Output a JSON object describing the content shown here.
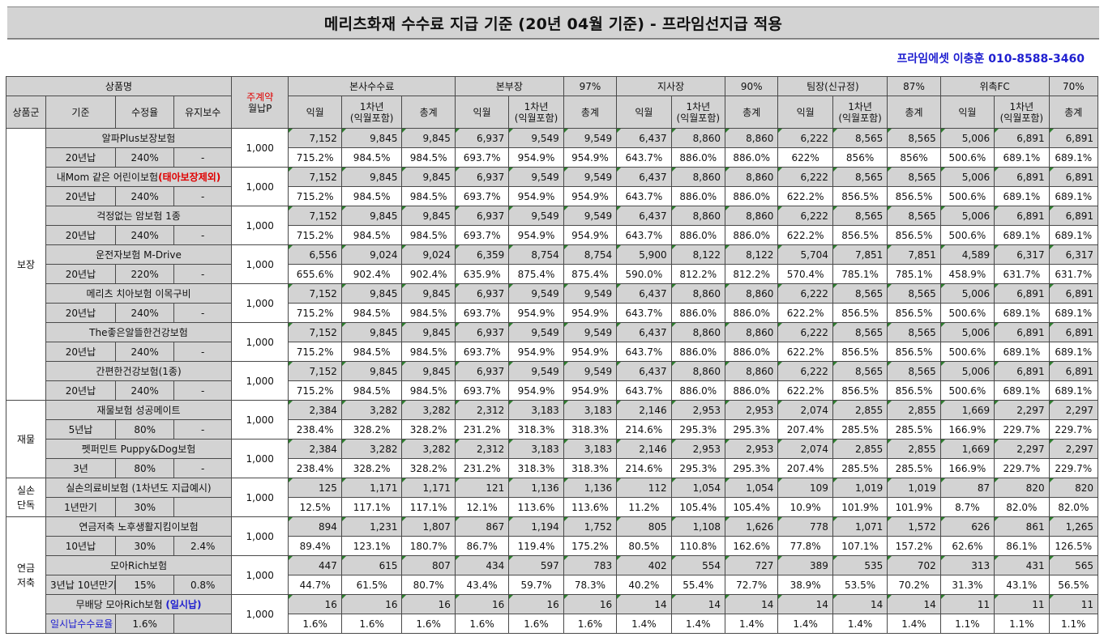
{
  "title": "메리츠화재 수수료 지급 기준 (20년 04월 기준) - 프라임선지급 적용",
  "contact": "프라임에셋 이충훈 010-8588-3460",
  "header": {
    "product_name": "상품명",
    "weekly_label": "주계약",
    "monthly_label": "월납P",
    "group": "상품군",
    "basis": "기준",
    "adj_rate": "수정율",
    "maintenance": "유지보수",
    "hq_fee": "본사수수료",
    "div_head": "본부장",
    "branch_head": "지사장",
    "team_head": "팀장(신규정)",
    "fc": "위촉FC",
    "div_pct": "97%",
    "branch_pct": "90%",
    "team_pct": "87%",
    "fc_pct": "70%",
    "next_month": "익월",
    "first_year_l1": "1차년",
    "first_year_l2": "(익월포함)",
    "total": "총계"
  },
  "groups": [
    {
      "name": "보장",
      "products": [
        {
          "name": "알파Plus보장보험",
          "basis": "20년납",
          "rate": "240%",
          "maint": "-",
          "premium": "1,000",
          "vals": [
            "7,152",
            "9,845",
            "9,845",
            "6,937",
            "9,549",
            "9,549",
            "6,437",
            "8,860",
            "8,860",
            "6,222",
            "8,565",
            "8,565",
            "5,006",
            "6,891",
            "6,891"
          ],
          "pcts": [
            "715.2%",
            "984.5%",
            "984.5%",
            "693.7%",
            "954.9%",
            "954.9%",
            "643.7%",
            "886.0%",
            "886.0%",
            "622%",
            "856%",
            "856%",
            "500.6%",
            "689.1%",
            "689.1%"
          ]
        },
        {
          "name": "내Mom 같은 어린이보험",
          "name_suffix": "(태아보장제외)",
          "basis": "20년납",
          "rate": "240%",
          "maint": "-",
          "premium": "1,000",
          "vals": [
            "7,152",
            "9,845",
            "9,845",
            "6,937",
            "9,549",
            "9,549",
            "6,437",
            "8,860",
            "8,860",
            "6,222",
            "8,565",
            "8,565",
            "5,006",
            "6,891",
            "6,891"
          ],
          "pcts": [
            "715.2%",
            "984.5%",
            "984.5%",
            "693.7%",
            "954.9%",
            "954.9%",
            "643.7%",
            "886.0%",
            "886.0%",
            "622.2%",
            "856.5%",
            "856.5%",
            "500.6%",
            "689.1%",
            "689.1%"
          ]
        },
        {
          "name": "걱정없는 암보험 1종",
          "basis": "20년납",
          "rate": "240%",
          "maint": "-",
          "premium": "1,000",
          "vals": [
            "7,152",
            "9,845",
            "9,845",
            "6,937",
            "9,549",
            "9,549",
            "6,437",
            "8,860",
            "8,860",
            "6,222",
            "8,565",
            "8,565",
            "5,006",
            "6,891",
            "6,891"
          ],
          "pcts": [
            "715.2%",
            "984.5%",
            "984.5%",
            "693.7%",
            "954.9%",
            "954.9%",
            "643.7%",
            "886.0%",
            "886.0%",
            "622.2%",
            "856.5%",
            "856.5%",
            "500.6%",
            "689.1%",
            "689.1%"
          ]
        },
        {
          "name": "운전자보험 M-Drive",
          "basis": "20년납",
          "rate": "220%",
          "maint": "-",
          "premium": "1,000",
          "vals": [
            "6,556",
            "9,024",
            "9,024",
            "6,359",
            "8,754",
            "8,754",
            "5,900",
            "8,122",
            "8,122",
            "5,704",
            "7,851",
            "7,851",
            "4,589",
            "6,317",
            "6,317"
          ],
          "pcts": [
            "655.6%",
            "902.4%",
            "902.4%",
            "635.9%",
            "875.4%",
            "875.4%",
            "590.0%",
            "812.2%",
            "812.2%",
            "570.4%",
            "785.1%",
            "785.1%",
            "458.9%",
            "631.7%",
            "631.7%"
          ]
        },
        {
          "name": "메리츠 치아보험 이목구비",
          "basis": "20년납",
          "rate": "240%",
          "maint": "-",
          "premium": "1,000",
          "vals": [
            "7,152",
            "9,845",
            "9,845",
            "6,937",
            "9,549",
            "9,549",
            "6,437",
            "8,860",
            "8,860",
            "6,222",
            "8,565",
            "8,565",
            "5,006",
            "6,891",
            "6,891"
          ],
          "pcts": [
            "715.2%",
            "984.5%",
            "984.5%",
            "693.7%",
            "954.9%",
            "954.9%",
            "643.7%",
            "886.0%",
            "886.0%",
            "622.2%",
            "856.5%",
            "856.5%",
            "500.6%",
            "689.1%",
            "689.1%"
          ]
        },
        {
          "name": "The좋은알뜰한건강보험",
          "basis": "20년납",
          "rate": "240%",
          "maint": "-",
          "premium": "1,000",
          "vals": [
            "7,152",
            "9,845",
            "9,845",
            "6,937",
            "9,549",
            "9,549",
            "6,437",
            "8,860",
            "8,860",
            "6,222",
            "8,565",
            "8,565",
            "5,006",
            "6,891",
            "6,891"
          ],
          "pcts": [
            "715.2%",
            "984.5%",
            "984.5%",
            "693.7%",
            "954.9%",
            "954.9%",
            "643.7%",
            "886.0%",
            "886.0%",
            "622.2%",
            "856.5%",
            "856.5%",
            "500.6%",
            "689.1%",
            "689.1%"
          ]
        },
        {
          "name": "간편한건강보험(1종)",
          "basis": "20년납",
          "rate": "240%",
          "maint": "-",
          "premium": "1,000",
          "vals": [
            "7,152",
            "9,845",
            "9,845",
            "6,937",
            "9,549",
            "9,549",
            "6,437",
            "8,860",
            "8,860",
            "6,222",
            "8,565",
            "8,565",
            "5,006",
            "6,891",
            "6,891"
          ],
          "pcts": [
            "715.2%",
            "984.5%",
            "984.5%",
            "693.7%",
            "954.9%",
            "954.9%",
            "643.7%",
            "886.0%",
            "886.0%",
            "622.2%",
            "856.5%",
            "856.5%",
            "500.6%",
            "689.1%",
            "689.1%"
          ]
        }
      ]
    },
    {
      "name": "재물",
      "products": [
        {
          "name": "재물보험 성공메이트",
          "basis": "5년납",
          "rate": "80%",
          "maint": "-",
          "premium": "1,000",
          "vals": [
            "2,384",
            "3,282",
            "3,282",
            "2,312",
            "3,183",
            "3,183",
            "2,146",
            "2,953",
            "2,953",
            "2,074",
            "2,855",
            "2,855",
            "1,669",
            "2,297",
            "2,297"
          ],
          "pcts": [
            "238.4%",
            "328.2%",
            "328.2%",
            "231.2%",
            "318.3%",
            "318.3%",
            "214.6%",
            "295.3%",
            "295.3%",
            "207.4%",
            "285.5%",
            "285.5%",
            "166.9%",
            "229.7%",
            "229.7%"
          ]
        },
        {
          "name": "펫퍼민트 Puppy&Dog보험",
          "basis": "3년",
          "rate": "80%",
          "maint": "-",
          "premium": "1,000",
          "vals": [
            "2,384",
            "3,282",
            "3,282",
            "2,312",
            "3,183",
            "3,183",
            "2,146",
            "2,953",
            "2,953",
            "2,074",
            "2,855",
            "2,855",
            "1,669",
            "2,297",
            "2,297"
          ],
          "pcts": [
            "238.4%",
            "328.2%",
            "328.2%",
            "231.2%",
            "318.3%",
            "318.3%",
            "214.6%",
            "295.3%",
            "295.3%",
            "207.4%",
            "285.5%",
            "285.5%",
            "166.9%",
            "229.7%",
            "229.7%"
          ]
        }
      ]
    },
    {
      "name": "실손\n단독",
      "products": [
        {
          "name": "실손의료비보험 (1차년도 지급예시)",
          "basis": "1년만기",
          "rate": "30%",
          "maint": "",
          "premium": "1,000",
          "vals": [
            "125",
            "1,171",
            "1,171",
            "121",
            "1,136",
            "1,136",
            "112",
            "1,054",
            "1,054",
            "109",
            "1,019",
            "1,019",
            "87",
            "820",
            "820"
          ],
          "pcts": [
            "12.5%",
            "117.1%",
            "117.1%",
            "12.1%",
            "113.6%",
            "113.6%",
            "11.2%",
            "105.4%",
            "105.4%",
            "10.9%",
            "101.9%",
            "101.9%",
            "8.7%",
            "82.0%",
            "82.0%"
          ]
        }
      ]
    },
    {
      "name": "연금\n저축",
      "products": [
        {
          "name": "연금저축 노후생활지킴이보험",
          "basis": "10년납",
          "rate": "30%",
          "maint": "2.4%",
          "premium": "1,000",
          "vals": [
            "894",
            "1,231",
            "1,807",
            "867",
            "1,194",
            "1,752",
            "805",
            "1,108",
            "1,626",
            "778",
            "1,071",
            "1,572",
            "626",
            "861",
            "1,265"
          ],
          "pcts": [
            "89.4%",
            "123.1%",
            "180.7%",
            "86.7%",
            "119.4%",
            "175.2%",
            "80.5%",
            "110.8%",
            "162.6%",
            "77.8%",
            "107.1%",
            "157.2%",
            "62.6%",
            "86.1%",
            "126.5%"
          ]
        },
        {
          "name": "모아Rich보험",
          "basis": "3년납 10년만기",
          "rate": "15%",
          "maint": "0.8%",
          "premium": "1,000",
          "vals": [
            "447",
            "615",
            "807",
            "434",
            "597",
            "783",
            "402",
            "554",
            "727",
            "389",
            "535",
            "702",
            "313",
            "431",
            "565"
          ],
          "pcts": [
            "44.7%",
            "61.5%",
            "80.7%",
            "43.4%",
            "59.7%",
            "78.3%",
            "40.2%",
            "55.4%",
            "72.7%",
            "38.9%",
            "53.5%",
            "70.2%",
            "31.3%",
            "43.1%",
            "56.5%"
          ]
        },
        {
          "name": "무배당 모아Rich보험 ",
          "name_suffix_blue": "(일시납)",
          "basis": "일시납수수료율",
          "basis_blue": true,
          "rate": "1.6%",
          "maint": "",
          "premium": "1,000",
          "vals": [
            "16",
            "16",
            "16",
            "16",
            "16",
            "16",
            "14",
            "14",
            "14",
            "14",
            "14",
            "14",
            "11",
            "11",
            "11"
          ],
          "pcts": [
            "1.6%",
            "1.6%",
            "1.6%",
            "1.6%",
            "1.6%",
            "1.6%",
            "1.4%",
            "1.4%",
            "1.4%",
            "1.4%",
            "1.4%",
            "1.4%",
            "1.1%",
            "1.1%",
            "1.1%"
          ]
        }
      ]
    }
  ]
}
